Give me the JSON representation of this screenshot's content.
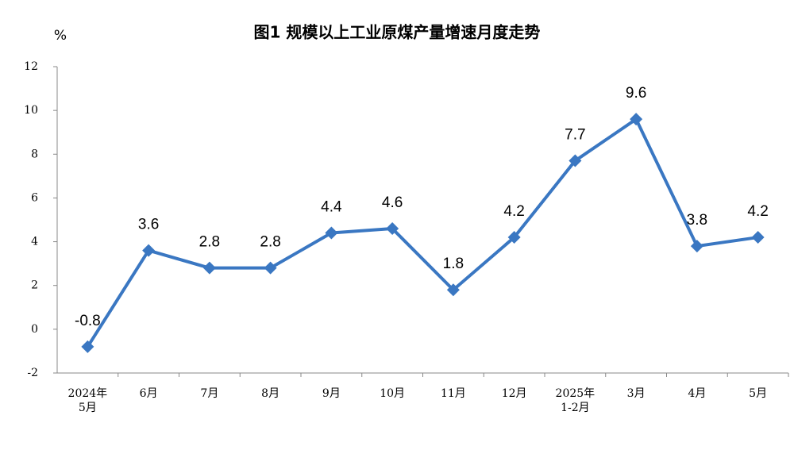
{
  "chart_data": {
    "type": "line",
    "title": "图1  规模以上工业原煤产量增速月度走势",
    "y_label": "%",
    "categories": [
      "2024年\n5月",
      "6月",
      "7月",
      "8月",
      "9月",
      "10月",
      "11月",
      "12月",
      "2025年\n1-2月",
      "3月",
      "4月",
      "5月"
    ],
    "series": [
      {
        "name": "原煤产量增速",
        "color": "#3a77c2",
        "values": [
          -0.8,
          3.6,
          2.8,
          2.8,
          4.4,
          4.6,
          1.8,
          4.2,
          7.7,
          9.6,
          3.8,
          4.2
        ]
      }
    ],
    "ylim": [
      -2,
      12
    ],
    "yticks": [
      -2,
      0,
      2,
      4,
      6,
      8,
      10,
      12
    ],
    "grid": false,
    "legend": false
  }
}
